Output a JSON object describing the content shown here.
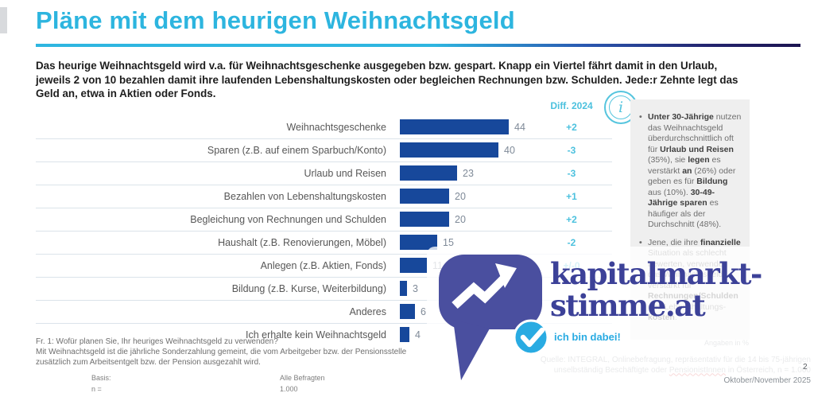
{
  "header": {
    "title": "Pläne mit dem heurigen Weihnachtsgeld"
  },
  "intro": {
    "line1": "Das heurige Weihnachtsgeld wird v.a. für Weihnachtsgeschenke ausgegeben bzw. gespart. Knapp ein Viertel fährt damit in den Urlaub,",
    "line2": "jeweils 2 von 10 bezahlen damit ihre laufenden Lebenshaltungskosten oder begleichen Rechnungen bzw. Schulden. Jede:r Zehnte legt das",
    "line3": "Geld an, etwa in Aktien oder Fonds."
  },
  "chart_data": {
    "type": "bar",
    "orientation": "horizontal",
    "title": "Pläne mit dem heurigen Weihnachtsgeld",
    "categories": [
      "Weihnachtsgeschenke",
      "Sparen (z.B. auf einem Sparbuch/Konto)",
      "Urlaub und Reisen",
      "Bezahlen von Lebenshaltungskosten",
      "Begleichung von Rechnungen und Schulden",
      "Haushalt (z.B. Renovierungen, Möbel)",
      "Anlegen (z.B. Aktien, Fonds)",
      "Bildung (z.B. Kurse, Weiterbildung)",
      "Anderes",
      "Ich erhalte kein Weihnachtsgeld"
    ],
    "values": [
      44,
      40,
      23,
      20,
      20,
      15,
      11,
      3,
      6,
      4
    ],
    "diff_header": "Diff. 2024",
    "diffs_vs_2024": [
      "+2",
      "-3",
      "-3",
      "+1",
      "+2",
      "-2",
      "+/-0",
      "",
      "",
      ""
    ],
    "units_note": "Angaben in %",
    "xlim": [
      0,
      50
    ],
    "bar_color": "#17489b",
    "diff_color": "#4cc1de",
    "grid": "row-separators",
    "legend_position": "none"
  },
  "sidebar": {
    "bullets": [
      {
        "segments": [
          {
            "text": "Unter 30-Jährige",
            "bold": true
          },
          {
            "text": " nutzen das Weihnachtsgeld überdurchschnittlich oft für ",
            "bold": false
          },
          {
            "text": "Urlaub und Reisen",
            "bold": true
          },
          {
            "text": " (35%), sie ",
            "bold": false
          },
          {
            "text": "legen",
            "bold": true
          },
          {
            "text": " es verstärkt ",
            "bold": false
          },
          {
            "text": "an",
            "bold": true
          },
          {
            "text": " (26%) oder geben es für ",
            "bold": false
          },
          {
            "text": "Bildung",
            "bold": true
          },
          {
            "text": " aus (10%). ",
            "bold": false
          },
          {
            "text": "30-49-Jährige sparen",
            "bold": true
          },
          {
            "text": " es häufiger als der Durchschnitt (48%).",
            "bold": false
          }
        ]
      },
      {
        "segments": [
          {
            "text": "Jene, die ihre ",
            "bold": false
          },
          {
            "text": "finanzielle",
            "bold": true
          },
          {
            "text": " Situation als schlecht bewerten, verwenden das Weihnachtsgeld verstärkt für ",
            "bold": false
          },
          {
            "text": "Rechnungen/Schulden",
            "bold": true
          },
          {
            "text": " und Lebenshaltungs-",
            "bold": false
          },
          {
            "text": "kosten",
            "bold": true
          },
          {
            "text": ".",
            "bold": false
          }
        ]
      }
    ]
  },
  "watermark": {
    "brand_line1": "kapitalmarkt-",
    "brand_line2": "stimme.at",
    "tagline": "ich bin dabei!",
    "bubble_color": "#4a4f9f",
    "brand_text_color": "#3c4198",
    "accent_color": "#29abe2"
  },
  "info_icon": {
    "glyph": "i"
  },
  "footer": {
    "question_note_line1": "Fr. 1: Wofür planen Sie, Ihr heuriges Weihnachtsgeld zu verwenden?",
    "question_note_line2": "Mit Weihnachtsgeld ist die jährliche Sonderzahlung gemeint, die vom Arbeitgeber bzw. der Pensionsstelle",
    "question_note_line3": "zusätzlich zum Arbeitsentgelt bzw. der Pension ausgezahlt wird.",
    "basis_label": "Basis:",
    "basis_value": "Alle Befragten",
    "n_label": "n =",
    "n_value": "1.000",
    "source_line1": "Quelle: INTEGRAL, Onlinebefragung, repräsentativ für die 14 bis 75-jährigen",
    "source_line2_part1": "unselbständig Beschäftigte oder ",
    "source_line2_misspell": "PensionistInnen",
    "source_line2_part2": " in Österreich, n = 1.000",
    "date_line": "Oktober/November 2025",
    "page_number": "2"
  },
  "colors": {
    "title": "#2db5df",
    "separator": "#dbe3ea"
  }
}
